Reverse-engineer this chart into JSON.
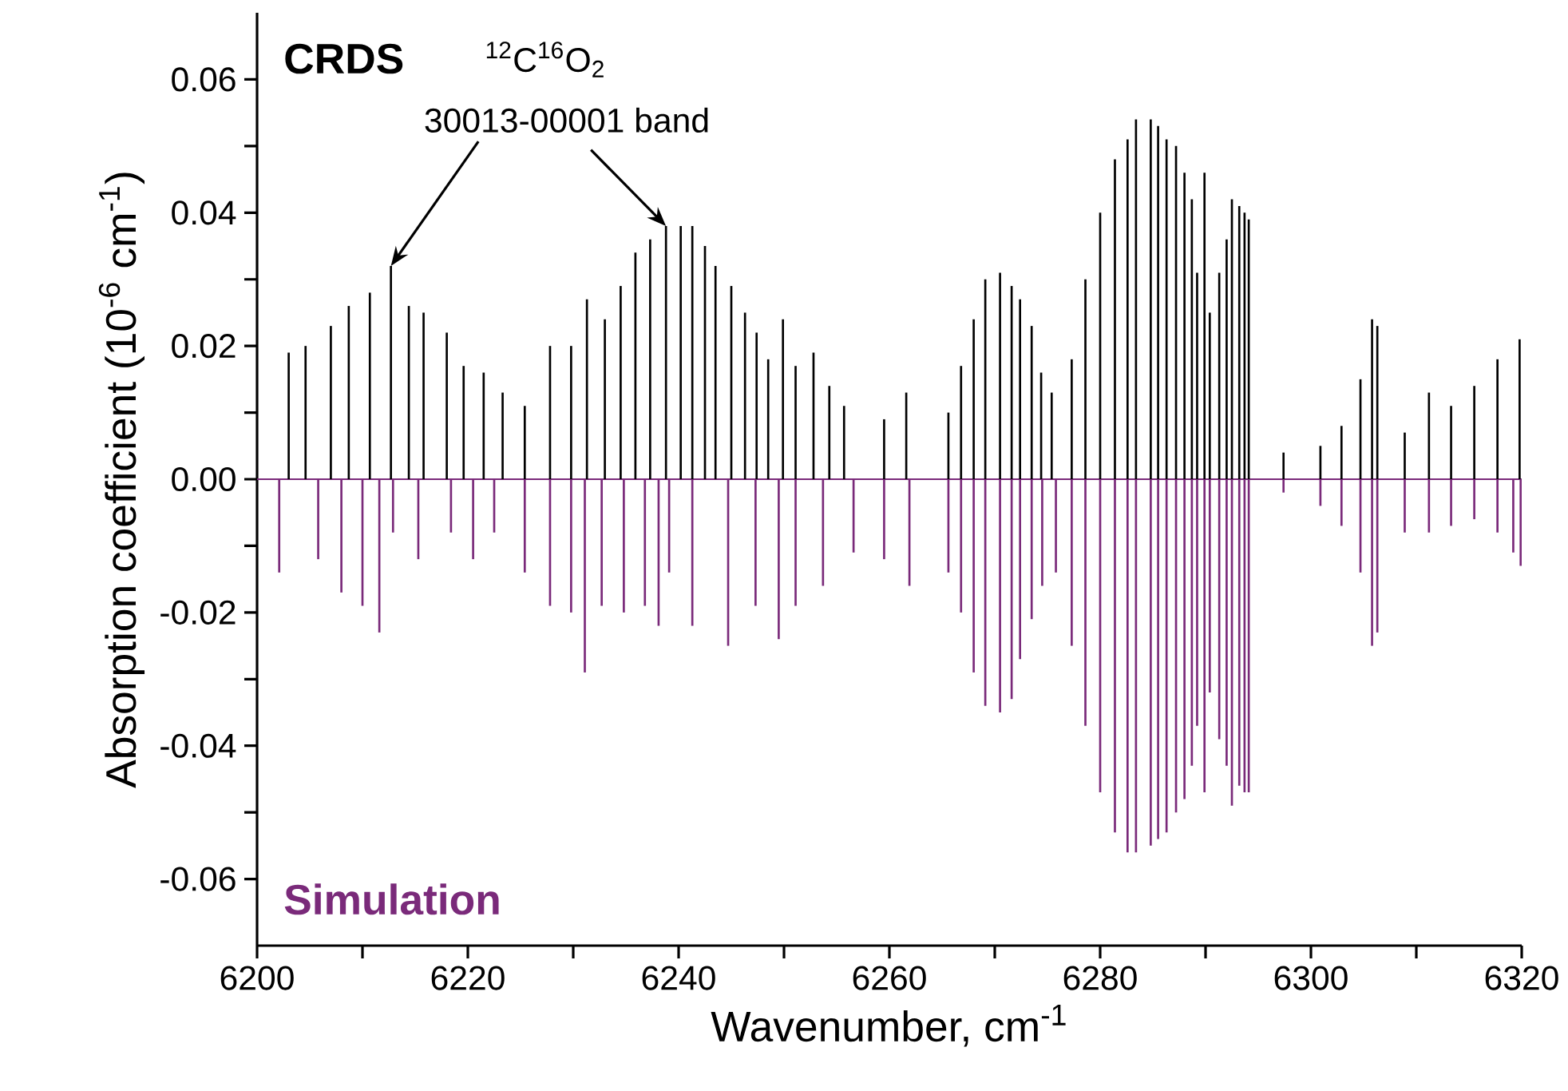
{
  "chart_data": {
    "type": "bar",
    "xlabel": "Wavenumber, cm$^{-1}$",
    "ylabel": "Absorption coefficient (10$^{-6}$ cm$^{-1}$)",
    "xlim": [
      6200,
      6320
    ],
    "ylim": [
      -0.07,
      0.07
    ],
    "xticks": [
      6200,
      {
        "value": 6210,
        "label": null
      },
      6220,
      {
        "value": 6230,
        "label": null
      },
      6240,
      {
        "value": 6250,
        "label": null
      },
      6260,
      {
        "value": 6270,
        "label": null
      },
      6280,
      {
        "value": 6290,
        "label": null
      },
      6300,
      {
        "value": 6310,
        "label": null
      },
      6320
    ],
    "yticks": [
      {
        "value": -0.06,
        "label": "-0.06"
      },
      {
        "value": -0.05,
        "label": null
      },
      {
        "value": -0.04,
        "label": "-0.04"
      },
      {
        "value": -0.03,
        "label": null
      },
      {
        "value": -0.02,
        "label": "-0.02"
      },
      {
        "value": -0.01,
        "label": null
      },
      {
        "value": 0,
        "label": "0.00"
      },
      {
        "value": 0.01,
        "label": null
      },
      {
        "value": 0.02,
        "label": "0.02"
      },
      {
        "value": 0.03,
        "label": null
      },
      {
        "value": 0.04,
        "label": "0.04"
      },
      {
        "value": 0.05,
        "label": null
      },
      {
        "value": 0.06,
        "label": "0.06"
      }
    ],
    "series": [
      {
        "name": "CRDS",
        "color": "#000000",
        "x": [
          6203.0,
          6204.6,
          6207.0,
          6208.7,
          6210.7,
          6212.7,
          6214.4,
          6215.8,
          6218.0,
          6219.6,
          6221.5,
          6223.3,
          6225.4,
          6227.8,
          6229.8,
          6231.3,
          6233.0,
          6234.5,
          6235.9,
          6237.3,
          6238.8,
          6240.2,
          6241.3,
          6242.5,
          6243.5,
          6245.0,
          6246.3,
          6247.4,
          6248.5,
          6249.9,
          6251.1,
          6252.8,
          6254.3,
          6255.7,
          6259.5,
          6261.6,
          6265.6,
          6266.8,
          6268.0,
          6269.1,
          6270.5,
          6271.6,
          6272.4,
          6273.5,
          6274.4,
          6275.4,
          6277.3,
          6278.6,
          6280.0,
          6281.4,
          6282.6,
          6283.4,
          6284.8,
          6285.5,
          6286.3,
          6287.2,
          6288.0,
          6288.7,
          6289.2,
          6289.9,
          6290.4,
          6291.3,
          6292.0,
          6292.5,
          6293.2,
          6293.7,
          6294.1,
          6297.4,
          6300.9,
          6302.9,
          6304.7,
          6305.8,
          6306.3,
          6308.9,
          6311.2,
          6313.3,
          6315.5,
          6317.7,
          6319.8
        ],
        "values": [
          0.019,
          0.02,
          0.023,
          0.026,
          0.028,
          0.032,
          0.026,
          0.025,
          0.022,
          0.017,
          0.016,
          0.013,
          0.011,
          0.02,
          0.02,
          0.027,
          0.024,
          0.029,
          0.034,
          0.036,
          0.038,
          0.038,
          0.038,
          0.035,
          0.032,
          0.029,
          0.025,
          0.022,
          0.018,
          0.024,
          0.017,
          0.019,
          0.014,
          0.011,
          0.009,
          0.013,
          0.01,
          0.017,
          0.024,
          0.03,
          0.031,
          0.029,
          0.027,
          0.023,
          0.016,
          0.013,
          0.018,
          0.03,
          0.04,
          0.048,
          0.051,
          0.054,
          0.054,
          0.053,
          0.051,
          0.05,
          0.046,
          0.042,
          0.031,
          0.046,
          0.025,
          0.031,
          0.036,
          0.042,
          0.041,
          0.04,
          0.039,
          0.004,
          0.005,
          0.008,
          0.015,
          0.024,
          0.023,
          0.007,
          0.013,
          0.011,
          0.014,
          0.018,
          0.021
        ]
      },
      {
        "name": "Simulation",
        "color": "#7a2a7a",
        "x": [
          6202.1,
          6205.8,
          6208.0,
          6210.0,
          6211.6,
          6212.9,
          6215.3,
          6218.4,
          6220.5,
          6222.5,
          6225.4,
          6227.8,
          6229.8,
          6231.1,
          6232.7,
          6234.8,
          6236.8,
          6238.1,
          6239.1,
          6241.3,
          6244.7,
          6247.3,
          6249.5,
          6251.1,
          6253.7,
          6256.6,
          6259.5,
          6261.9,
          6265.6,
          6266.8,
          6268.0,
          6269.1,
          6270.5,
          6271.6,
          6272.4,
          6273.5,
          6274.5,
          6275.8,
          6277.3,
          6278.6,
          6280.0,
          6281.4,
          6282.6,
          6283.4,
          6284.8,
          6285.5,
          6286.3,
          6287.2,
          6288.0,
          6288.7,
          6289.2,
          6289.9,
          6290.4,
          6291.3,
          6292.0,
          6292.5,
          6293.2,
          6293.7,
          6294.1,
          6297.4,
          6300.9,
          6302.9,
          6304.7,
          6305.8,
          6306.3,
          6308.9,
          6311.2,
          6313.3,
          6315.5,
          6317.7,
          6319.2,
          6319.9
        ],
        "values": [
          -0.014,
          -0.012,
          -0.017,
          -0.019,
          -0.023,
          -0.008,
          -0.012,
          -0.008,
          -0.012,
          -0.008,
          -0.014,
          -0.019,
          -0.02,
          -0.029,
          -0.019,
          -0.02,
          -0.019,
          -0.022,
          -0.014,
          -0.022,
          -0.025,
          -0.019,
          -0.024,
          -0.019,
          -0.016,
          -0.011,
          -0.012,
          -0.016,
          -0.014,
          -0.02,
          -0.029,
          -0.034,
          -0.035,
          -0.033,
          -0.027,
          -0.021,
          -0.016,
          -0.014,
          -0.025,
          -0.037,
          -0.047,
          -0.053,
          -0.056,
          -0.056,
          -0.055,
          -0.054,
          -0.053,
          -0.05,
          -0.048,
          -0.043,
          -0.037,
          -0.047,
          -0.032,
          -0.039,
          -0.043,
          -0.049,
          -0.046,
          -0.047,
          -0.047,
          -0.002,
          -0.004,
          -0.007,
          -0.014,
          -0.025,
          -0.023,
          -0.008,
          -0.008,
          -0.007,
          -0.006,
          -0.008,
          -0.011,
          -0.013
        ]
      }
    ],
    "ref_lines": [
      {
        "axis": "y",
        "value": 0,
        "color": "#7a2a7a"
      }
    ],
    "annotations": [
      "$^{12}$C$^{16}$O$_{2}$",
      {
        "text": "30013-00001 band",
        "x": 6238.8,
        "y": 0.038
      }
    ]
  }
}
